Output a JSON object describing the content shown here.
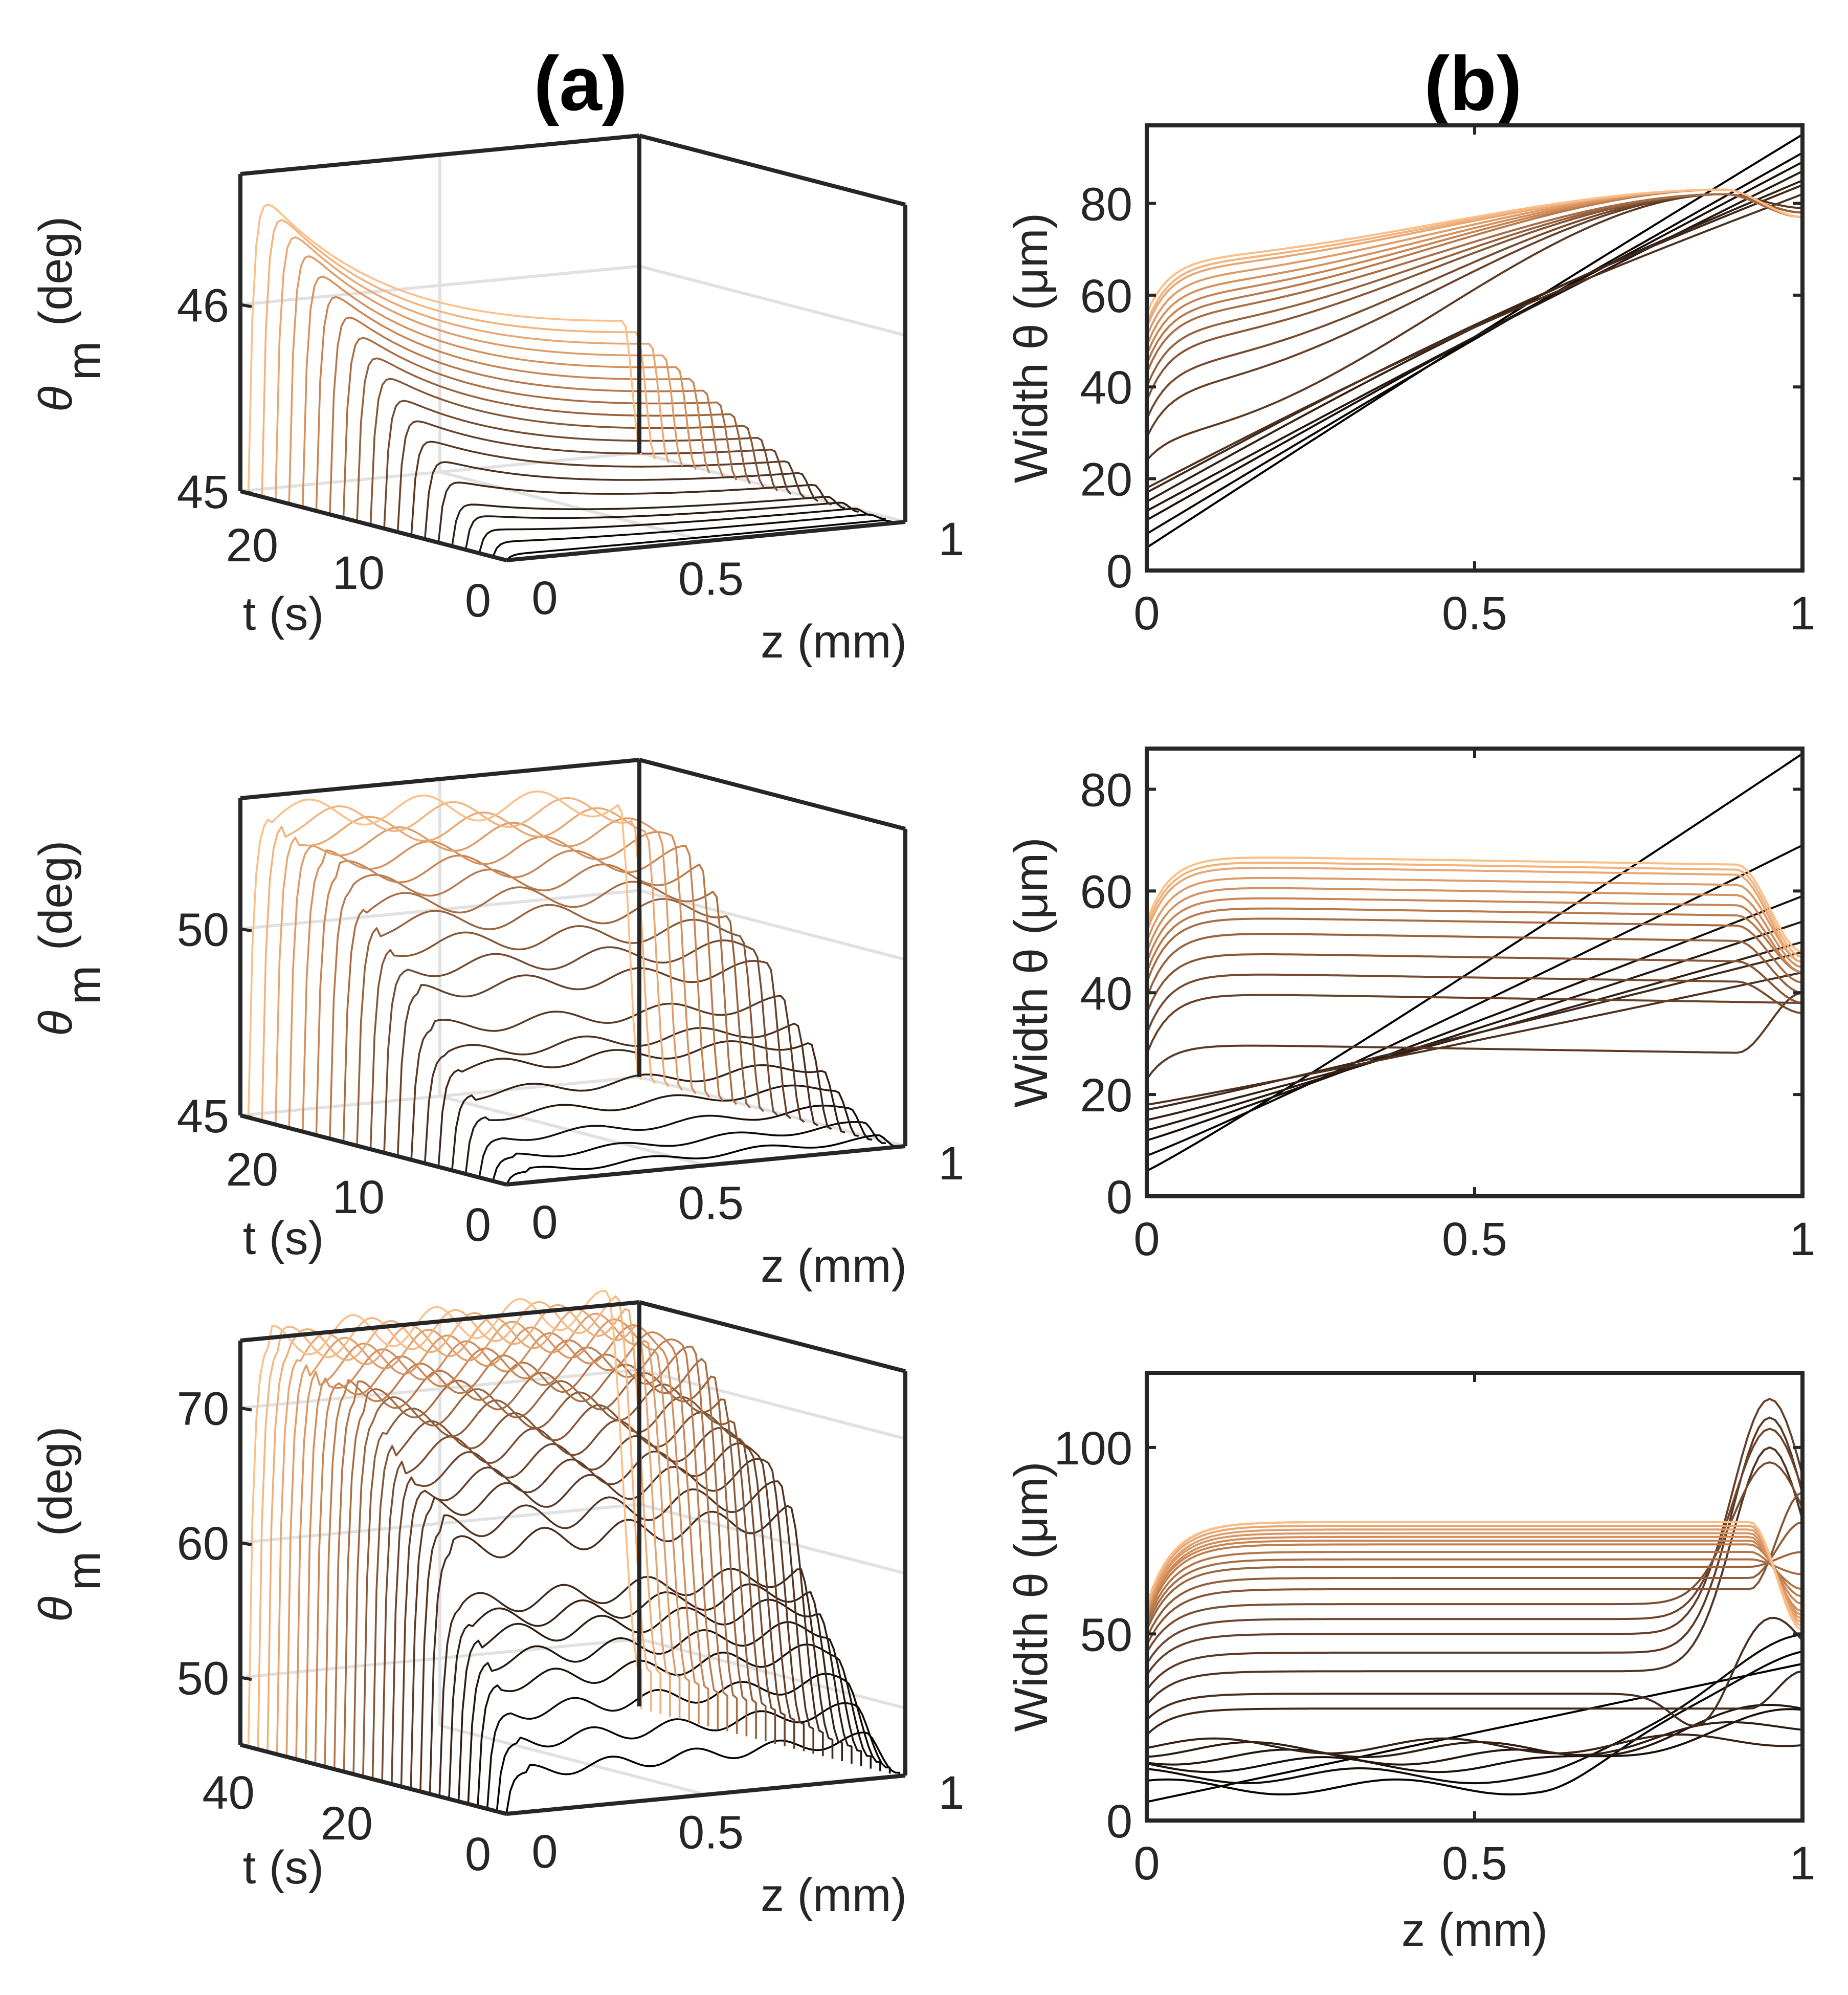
{
  "figure": {
    "column_labels": [
      "(a)",
      "(b)"
    ]
  },
  "chart_data": [
    {
      "id": "a1",
      "type": "line",
      "title": "(a)",
      "xlabel": "z (mm)",
      "ylabel": "t (s)",
      "zlabel_main": "θ",
      "zlabel_sub": "m",
      "zlabel_unit": "(deg)",
      "xlim": [
        0,
        1
      ],
      "tlim": [
        0,
        25
      ],
      "zlim": [
        45,
        46.7
      ],
      "xticks": [
        "0",
        "0.5",
        "1"
      ],
      "tticks": [
        "0",
        "10",
        "20"
      ],
      "zticks": [
        "45",
        "46"
      ],
      "n_curves": 20,
      "t_values": [
        0,
        1.25,
        2.5,
        3.75,
        5,
        6.25,
        7.5,
        8.75,
        10,
        11.25,
        12.5,
        13.75,
        15,
        16.25,
        17.5,
        18.75,
        20,
        21.25,
        22.5,
        23.75
      ],
      "peak_values": [
        45.03,
        45.08,
        45.13,
        45.19,
        45.24,
        45.35,
        45.45,
        45.55,
        45.65,
        45.75,
        45.86,
        45.96,
        46.06,
        46.16,
        46.26,
        46.36,
        46.46,
        46.55,
        46.63,
        46.7
      ],
      "end_values": [
        45.02,
        45.03,
        45.04,
        45.05,
        45.06,
        45.1,
        45.14,
        45.18,
        45.22,
        45.26,
        45.3,
        45.34,
        45.38,
        45.42,
        45.46,
        45.5,
        45.54,
        45.58,
        45.62,
        45.66
      ]
    },
    {
      "id": "b1",
      "type": "line",
      "title": "(b)",
      "xlabel": "",
      "ylabel": "Width θ (μm)",
      "xlim": [
        0,
        1
      ],
      "ylim": [
        0,
        97
      ],
      "xticks": [
        "0",
        "0.5",
        "1"
      ],
      "yticks": [
        "0",
        "20",
        "40",
        "60",
        "80"
      ],
      "series_start": [
        5,
        8,
        11,
        13,
        15,
        17,
        18,
        24,
        29,
        33,
        37,
        40,
        43,
        45,
        47,
        49,
        51,
        53,
        54,
        56
      ],
      "series_plateau": [
        5,
        8,
        11,
        13,
        15,
        17,
        18,
        30,
        40,
        45,
        50,
        53,
        56,
        58,
        60,
        62,
        64,
        66,
        67,
        68
      ],
      "series_peak": [
        95,
        91,
        89,
        87,
        85,
        84,
        82,
        82,
        82,
        82,
        82,
        82,
        82,
        83,
        83,
        83,
        83,
        83,
        83,
        83
      ],
      "series_end": [
        95,
        91,
        89,
        87,
        85,
        84,
        82,
        79,
        78,
        78,
        78,
        78,
        77,
        77,
        77,
        77,
        77,
        77,
        77,
        77
      ]
    },
    {
      "id": "a2",
      "type": "line",
      "xlabel": "z (mm)",
      "ylabel": "t (s)",
      "zlabel_main": "θ",
      "zlabel_sub": "m",
      "zlabel_unit": "(deg)",
      "xlim": [
        0,
        1
      ],
      "tlim": [
        0,
        25
      ],
      "zlim": [
        45,
        53.5
      ],
      "xticks": [
        "0",
        "0.5",
        "1"
      ],
      "tticks": [
        "0",
        "10",
        "20"
      ],
      "zticks": [
        "45",
        "50"
      ],
      "n_curves": 20,
      "plateau_values": [
        45.3,
        45.6,
        46.0,
        46.5,
        47.0,
        47.6,
        47.9,
        48.5,
        49.4,
        49.9,
        50.4,
        50.9,
        51.3,
        51.7,
        52.0,
        52.3,
        52.6,
        52.8,
        53.0,
        53.1
      ]
    },
    {
      "id": "b2",
      "type": "line",
      "xlabel": "",
      "ylabel": "Width θ (μm)",
      "xlim": [
        0,
        1
      ],
      "ylim": [
        0,
        88
      ],
      "xticks": [
        "0",
        "0.5",
        "1"
      ],
      "yticks": [
        "0",
        "20",
        "40",
        "60",
        "80"
      ],
      "series_start": [
        5,
        8,
        11,
        13,
        15,
        17,
        18,
        23,
        28,
        32,
        36,
        39,
        42,
        44,
        46,
        48,
        50,
        52,
        53,
        54
      ],
      "series_plateau": [
        5,
        8,
        11,
        13,
        15,
        17,
        18,
        30,
        40,
        44,
        48,
        52,
        55,
        57,
        59,
        61,
        63,
        65,
        66,
        67
      ],
      "series_end": [
        87,
        69,
        59,
        54,
        50,
        48,
        44,
        40,
        38,
        36,
        38,
        40,
        42,
        44,
        44,
        45,
        46,
        46,
        47,
        48
      ]
    },
    {
      "id": "a3",
      "type": "line",
      "xlabel": "z (mm)",
      "ylabel": "t (s)",
      "zlabel_main": "θ",
      "zlabel_sub": "m",
      "zlabel_unit": "(deg)",
      "xlim": [
        0,
        1
      ],
      "tlim": [
        0,
        45
      ],
      "zlim": [
        45,
        75
      ],
      "xticks": [
        "0",
        "0.5",
        "1"
      ],
      "tticks": [
        "0",
        "20",
        "40"
      ],
      "zticks": [
        "50",
        "60",
        "70"
      ],
      "n_curves": 28,
      "plateau_values": [
        48,
        50,
        52,
        54,
        55.5,
        57,
        58,
        59,
        63,
        64.5,
        66,
        67,
        68,
        69,
        70,
        70.8,
        71.5,
        72,
        72.6,
        73,
        73.4,
        73.8,
        74.1,
        74.4,
        74.6,
        74.8,
        74.9,
        75
      ]
    },
    {
      "id": "b3",
      "type": "line",
      "xlabel": "z (mm)",
      "ylabel": "Width θ (μm)",
      "xlim": [
        0,
        1
      ],
      "ylim": [
        0,
        120
      ],
      "xticks": [
        "0",
        "0.5",
        "1"
      ],
      "yticks": [
        "0",
        "50",
        "100"
      ],
      "series_start": [
        5,
        8,
        11,
        13,
        15,
        17,
        18,
        23,
        27,
        31,
        35,
        39,
        42,
        45,
        47,
        49,
        51,
        52,
        53,
        54,
        55,
        55,
        56,
        56,
        57,
        57,
        58,
        58
      ],
      "series_plateau": [
        5,
        9,
        12,
        15,
        17,
        19,
        20,
        30,
        34,
        40,
        45,
        50,
        54,
        58,
        62,
        65,
        68,
        70,
        72,
        74,
        75,
        76,
        77,
        78,
        79,
        80,
        80,
        80
      ],
      "series_end": [
        42,
        45,
        48,
        28,
        30,
        26,
        22,
        40,
        55,
        100,
        108,
        113,
        105,
        96,
        88,
        80,
        72,
        66,
        62,
        60,
        58,
        56,
        55,
        54,
        53,
        52,
        52,
        51
      ]
    }
  ]
}
